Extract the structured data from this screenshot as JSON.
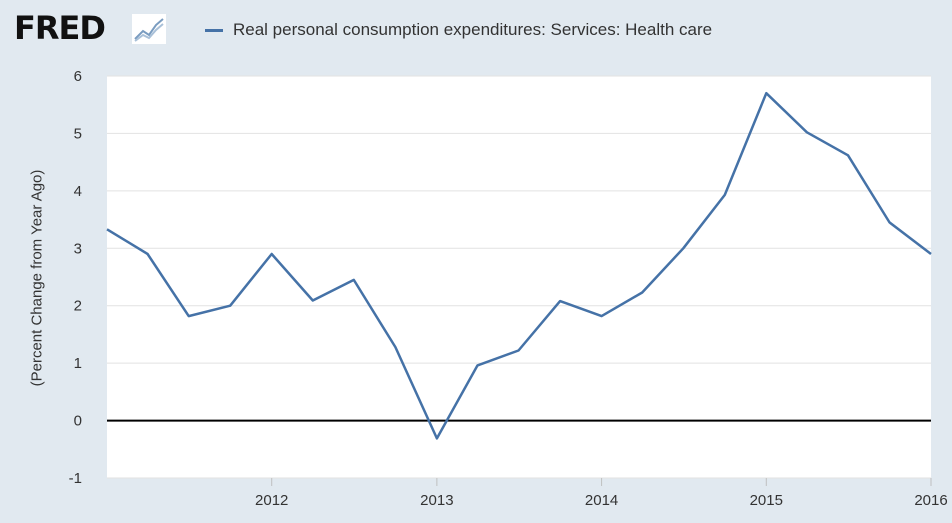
{
  "logo": {
    "text": "FRED",
    "mark_icon": "fred-graph-icon"
  },
  "legend": {
    "label": "Real personal consumption expenditures: Services: Health care",
    "color": "#4572a7"
  },
  "chart_data": {
    "type": "line",
    "title": "",
    "xlabel": "",
    "ylabel": "(Percent Change from Year Ago)",
    "ylim": [
      -1,
      6
    ],
    "yticks": [
      -1,
      0,
      1,
      2,
      3,
      4,
      5,
      6
    ],
    "xlim": [
      "2011-01-01",
      "2016-01-01"
    ],
    "xticks": [
      "2012",
      "2013",
      "2014",
      "2015",
      "2016"
    ],
    "grid": true,
    "legend_position": "top",
    "zero_line": true,
    "series": [
      {
        "name": "Real personal consumption expenditures: Services: Health care",
        "color": "#4572a7",
        "x": [
          "2011-01-01",
          "2011-04-01",
          "2011-07-01",
          "2011-10-01",
          "2012-01-01",
          "2012-04-01",
          "2012-07-01",
          "2012-10-01",
          "2013-01-01",
          "2013-04-01",
          "2013-07-01",
          "2013-10-01",
          "2014-01-01",
          "2014-04-01",
          "2014-07-01",
          "2014-10-01",
          "2015-01-01",
          "2015-04-01",
          "2015-07-01",
          "2015-10-01",
          "2016-01-01"
        ],
        "y": [
          3.33,
          2.9,
          1.82,
          2.0,
          2.9,
          2.09,
          2.45,
          1.28,
          -0.31,
          0.96,
          1.22,
          2.08,
          1.82,
          2.23,
          3.0,
          3.93,
          5.7,
          5.02,
          4.62,
          3.45,
          2.9
        ]
      }
    ]
  }
}
